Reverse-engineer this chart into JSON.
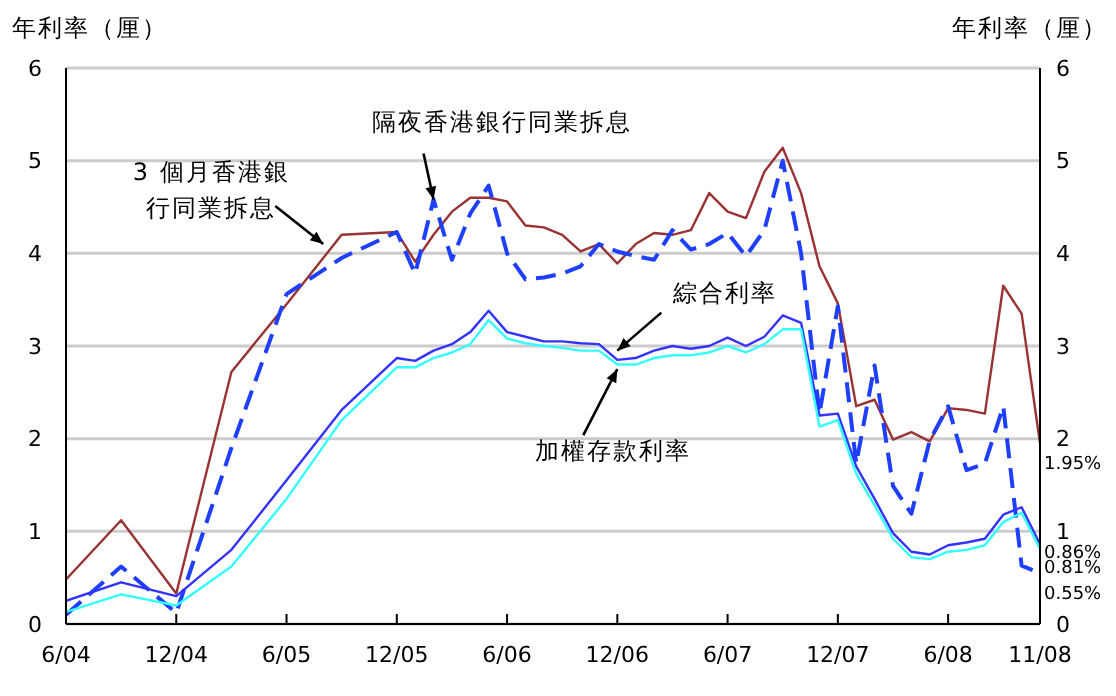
{
  "chart_data": {
    "type": "line",
    "ylabel": "年利率（厘）",
    "y2label": "年利率（厘）",
    "x": [
      "2004-06",
      "2004-09",
      "2004-12",
      "2005-03",
      "2005-06",
      "2005-09",
      "2005-12",
      "2006-01",
      "2006-02",
      "2006-03",
      "2006-04",
      "2006-05",
      "2006-06",
      "2006-07",
      "2006-08",
      "2006-09",
      "2006-10",
      "2006-11",
      "2006-12",
      "2007-01",
      "2007-02",
      "2007-03",
      "2007-04",
      "2007-05",
      "2007-06",
      "2007-07",
      "2007-08",
      "2007-09",
      "2007-10",
      "2007-11",
      "2007-12",
      "2008-01",
      "2008-02",
      "2008-03",
      "2008-04",
      "2008-05",
      "2008-06",
      "2008-07",
      "2008-08",
      "2008-09",
      "2008-10",
      "2008-11"
    ],
    "series": [
      {
        "color": "#993333",
        "line_style": "solid",
        "values": [
          0.48,
          1.12,
          0.33,
          2.72,
          3.45,
          4.2,
          4.23,
          3.91,
          4.2,
          4.45,
          4.6,
          4.6,
          4.56,
          4.3,
          4.28,
          4.2,
          4.02,
          4.1,
          3.89,
          4.1,
          4.22,
          4.2,
          4.25,
          4.65,
          4.45,
          4.38,
          4.88,
          5.14,
          4.65,
          3.86,
          3.46,
          2.35,
          2.42,
          1.99,
          2.07,
          1.97,
          2.33,
          2.31,
          2.27,
          3.65,
          3.35,
          1.95
        ],
        "value_labels": [
          null,
          null,
          null,
          null,
          null,
          null,
          null,
          null,
          null,
          null,
          null,
          null,
          null,
          null,
          null,
          null,
          null,
          null,
          null,
          null,
          null,
          null,
          null,
          null,
          null,
          null,
          null,
          null,
          null,
          null,
          null,
          null,
          null,
          null,
          null,
          null,
          null,
          null,
          null,
          null,
          null,
          "1.95%"
        ]
      },
      {
        "color": "#1f3fff",
        "line_style": "dashed",
        "values": [
          0.1,
          0.62,
          0.12,
          1.9,
          3.56,
          3.95,
          4.23,
          3.78,
          4.58,
          3.93,
          4.43,
          4.73,
          4.0,
          3.72,
          3.74,
          3.78,
          3.86,
          4.1,
          4.02,
          3.97,
          3.93,
          4.25,
          4.04,
          4.1,
          4.22,
          3.97,
          4.25,
          5.0,
          4.0,
          2.27,
          3.43,
          1.73,
          2.79,
          1.49,
          1.19,
          1.98,
          2.35,
          1.66,
          1.73,
          2.35,
          0.63,
          0.55
        ],
        "value_labels": [
          null,
          null,
          null,
          null,
          null,
          null,
          null,
          null,
          null,
          null,
          null,
          null,
          null,
          null,
          null,
          null,
          null,
          null,
          null,
          null,
          null,
          null,
          null,
          null,
          null,
          null,
          null,
          null,
          null,
          null,
          null,
          null,
          null,
          null,
          null,
          null,
          null,
          null,
          null,
          null,
          null,
          "0.55%"
        ]
      },
      {
        "color": "#3333ff",
        "line_style": "solid",
        "values": [
          0.25,
          0.45,
          0.3,
          0.8,
          1.55,
          2.31,
          2.87,
          2.84,
          2.95,
          3.02,
          3.15,
          3.38,
          3.15,
          3.1,
          3.05,
          3.05,
          3.03,
          3.02,
          2.85,
          2.87,
          2.95,
          3.0,
          2.97,
          3.0,
          3.09,
          3.0,
          3.1,
          3.33,
          3.25,
          2.25,
          2.27,
          1.7,
          1.35,
          0.98,
          0.78,
          0.75,
          0.85,
          0.88,
          0.92,
          1.18,
          1.26,
          0.86
        ],
        "value_labels": [
          null,
          null,
          null,
          null,
          null,
          null,
          null,
          null,
          null,
          null,
          null,
          null,
          null,
          null,
          null,
          null,
          null,
          null,
          null,
          null,
          null,
          null,
          null,
          null,
          null,
          null,
          null,
          null,
          null,
          null,
          null,
          null,
          null,
          null,
          null,
          null,
          null,
          null,
          null,
          null,
          null,
          "0.86%"
        ]
      },
      {
        "color": "#33ffff",
        "line_style": "solid",
        "values": [
          0.13,
          0.32,
          0.2,
          0.62,
          1.35,
          2.2,
          2.77,
          2.77,
          2.87,
          2.93,
          3.02,
          3.28,
          3.08,
          3.03,
          3.0,
          2.98,
          2.95,
          2.95,
          2.8,
          2.8,
          2.87,
          2.9,
          2.9,
          2.93,
          3.0,
          2.93,
          3.02,
          3.18,
          3.18,
          2.13,
          2.2,
          1.62,
          1.28,
          0.92,
          0.72,
          0.7,
          0.78,
          0.8,
          0.85,
          1.1,
          1.2,
          0.81
        ],
        "value_labels": [
          null,
          null,
          null,
          null,
          null,
          null,
          null,
          null,
          null,
          null,
          null,
          null,
          null,
          null,
          null,
          null,
          null,
          null,
          null,
          null,
          null,
          null,
          null,
          null,
          null,
          null,
          null,
          null,
          null,
          null,
          null,
          null,
          null,
          null,
          null,
          null,
          null,
          null,
          null,
          null,
          null,
          "0.81%"
        ]
      }
    ],
    "xlim": [
      "2004-06",
      "2008-11"
    ],
    "xticks": [
      {
        "value": "2004-06",
        "label": "6/04"
      },
      {
        "value": "2004-12",
        "label": "12/04"
      },
      {
        "value": "2005-06",
        "label": "6/05"
      },
      {
        "value": "2005-12",
        "label": "12/05"
      },
      {
        "value": "2006-06",
        "label": "6/06"
      },
      {
        "value": "2006-12",
        "label": "12/06"
      },
      {
        "value": "2007-06",
        "label": "6/07"
      },
      {
        "value": "2007-12",
        "label": "12/07"
      },
      {
        "value": "2008-06",
        "label": "6/08"
      },
      {
        "value": "2008-11",
        "label": "11/08"
      }
    ],
    "ylim": [
      0,
      6
    ],
    "yticks": [
      0,
      1,
      2,
      3,
      4,
      5,
      6
    ],
    "y2lim": [
      0,
      6
    ],
    "y2ticks": [
      0,
      1,
      2,
      3,
      4,
      5,
      6
    ],
    "grid": "y",
    "marker": "none",
    "annotations": [
      {
        "text": "3 個月香港銀行同業拆息",
        "x": "2005-08",
        "y": 4.1
      },
      {
        "text": "隔夜香港銀行同業拆息",
        "x": "2006-02",
        "y": 4.58
      },
      {
        "text": "綜合利率",
        "x": "2006-12",
        "y": 2.95
      },
      {
        "text": "加權存款利率",
        "x": "2006-12",
        "y": 2.75
      }
    ]
  }
}
